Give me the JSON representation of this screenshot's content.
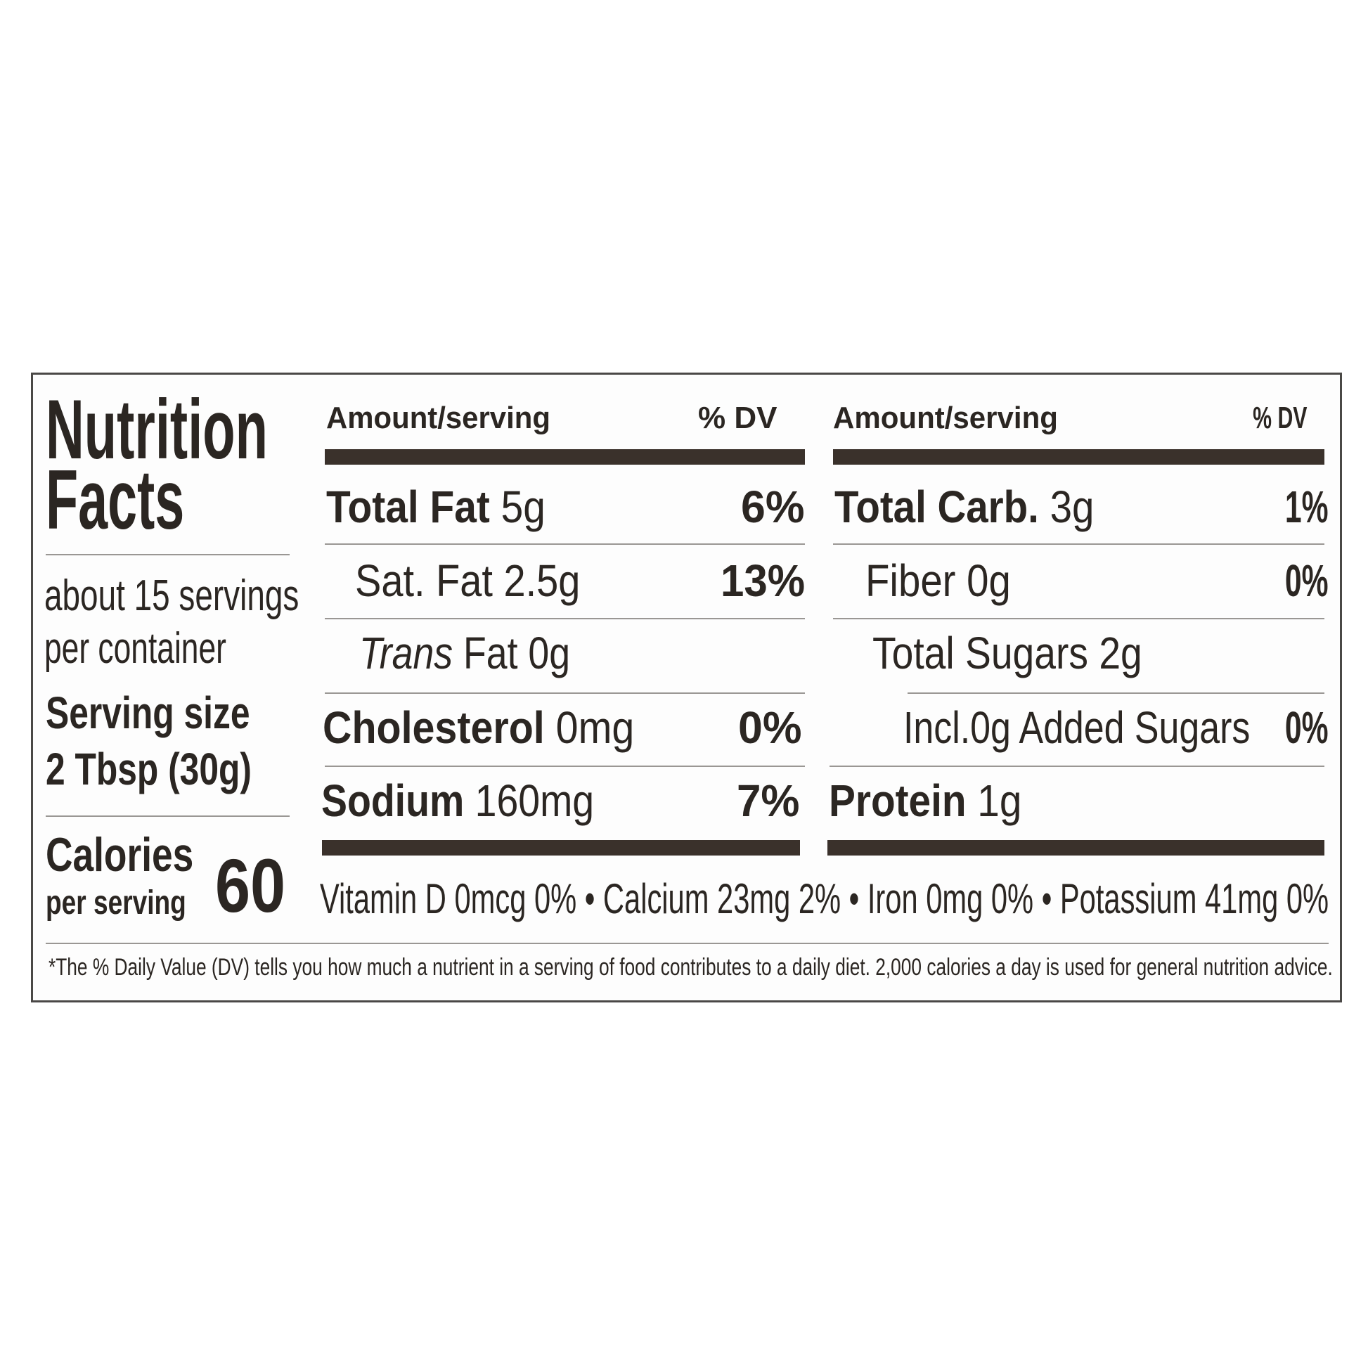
{
  "title": [
    "Nutrition",
    "Facts"
  ],
  "servings_per_container": [
    "about 15 servings",
    "per container"
  ],
  "serving_size": {
    "label": "Serving size",
    "value": "2 Tbsp (30g)"
  },
  "calories": {
    "label": "Calories",
    "sublabel": "per serving",
    "value": "60"
  },
  "columns": [
    {
      "header": "Amount/serving",
      "dv_header": "% DV",
      "rows": [
        {
          "name": "Total Fat",
          "amount": "5g",
          "dv": "6%"
        },
        {
          "name": "Sat. Fat",
          "amount": "2.5g",
          "dv": "13%"
        },
        {
          "name": "Trans",
          "name_rest": "Fat",
          "amount": "0g",
          "dv": ""
        },
        {
          "name": "Cholesterol",
          "amount": "0mg",
          "dv": "0%"
        },
        {
          "name": "Sodium",
          "amount": "160mg",
          "dv": "7%"
        }
      ]
    },
    {
      "header": "Amount/serving",
      "dv_header": "% DV",
      "rows": [
        {
          "name": "Total Carb.",
          "amount": "3g",
          "dv": "1%"
        },
        {
          "name": "Fiber",
          "amount": "0g",
          "dv": "0%"
        },
        {
          "name": "Total Sugars",
          "amount": "2g",
          "dv": ""
        },
        {
          "name": "Incl.0g Added Sugars",
          "amount": "",
          "dv": "0%"
        },
        {
          "name": "Protein",
          "amount": "1g",
          "dv": ""
        }
      ]
    }
  ],
  "vitamins": "Vitamin D 0mcg 0% • Calcium 23mg 2% • Iron 0mg 0% • Potassium 41mg 0%",
  "footnote": "*The % Daily Value (DV) tells you how much a nutrient in a serving of food contributes to a daily diet. 2,000 calories a day is used for general nutrition advice.",
  "colors": {
    "text": "#2b2622",
    "bars": "#3a312b"
  }
}
